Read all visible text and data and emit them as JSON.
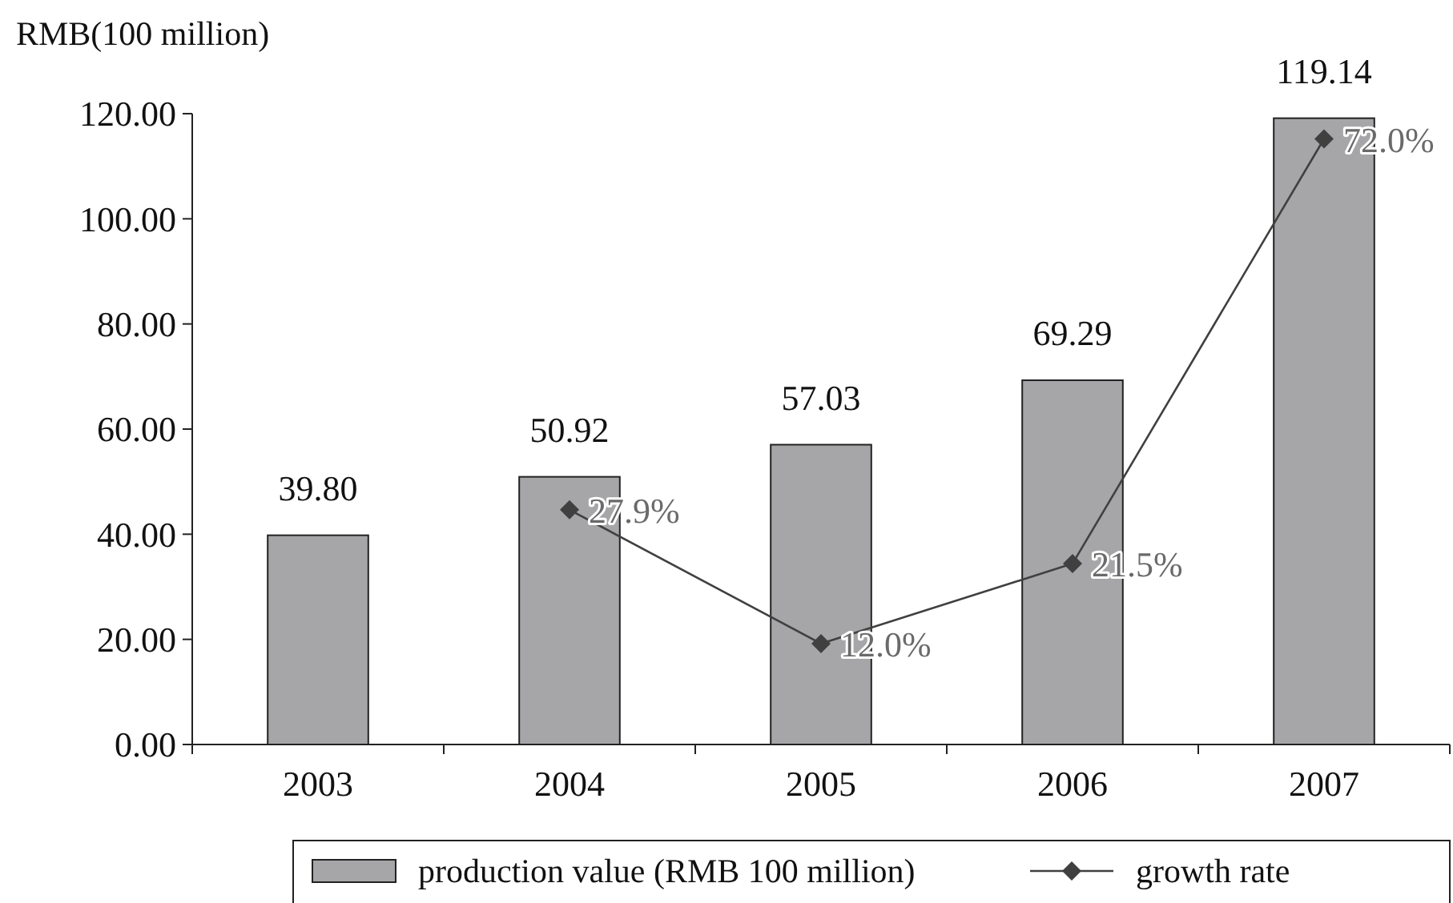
{
  "chart_data": {
    "type": "bar",
    "ylabel": "RMB(100 million)",
    "categories": [
      "2003",
      "2004",
      "2005",
      "2006",
      "2007"
    ],
    "series": [
      {
        "name": "production value (RMB 100 million)",
        "color": "#a6a6a9",
        "values": [
          39.8,
          50.92,
          57.03,
          69.29,
          119.14
        ],
        "value_labels": [
          "39.80",
          "50.92",
          "57.03",
          "69.29",
          "119.14"
        ]
      },
      {
        "name": "growth rate",
        "type": "line",
        "axis": "y2",
        "color": "#404040",
        "values": [
          null,
          27.9,
          12.0,
          21.5,
          72.0
        ],
        "value_labels": [
          null,
          "27.9%",
          "12.0%",
          "21.5%",
          "72.0%"
        ]
      }
    ],
    "ylim": [
      0,
      120
    ],
    "yticks": [
      {
        "value": 0,
        "label": "0.00"
      },
      {
        "value": 20,
        "label": "20.00"
      },
      {
        "value": 40,
        "label": "40.00"
      },
      {
        "value": 60,
        "label": "60.00"
      },
      {
        "value": 80,
        "label": "80.00"
      },
      {
        "value": 100,
        "label": "100.00"
      },
      {
        "value": 120,
        "label": "120.00"
      }
    ],
    "y2lim": [
      0,
      75
    ],
    "marker": "diamond",
    "legend": "bottom",
    "grid": false
  }
}
